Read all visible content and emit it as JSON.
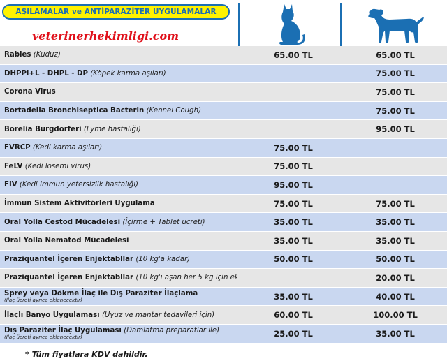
{
  "header": {
    "title": "AŞILAMALAR ve ANTİPARAZİTER UYGULAMALAR",
    "site_name": "veterinerhekimligi.com",
    "columns": [
      {
        "animal": "cat",
        "icon": "cat-icon"
      },
      {
        "animal": "dog",
        "icon": "dog-icon"
      }
    ]
  },
  "rows": [
    {
      "name": "Rabies",
      "note": "(Kuduz)",
      "sub": "",
      "cat": "65.00 TL",
      "dog": "65.00 TL"
    },
    {
      "name": "DHPPi+L - DHPL - DP",
      "note": "(Köpek karma aşıları)",
      "sub": "",
      "cat": "",
      "dog": "75.00 TL"
    },
    {
      "name": "Corona Virus",
      "note": "",
      "sub": "",
      "cat": "",
      "dog": "75.00 TL"
    },
    {
      "name": "Bortadella Bronchiseptica Bacterin",
      "note": "(Kennel Cough)",
      "sub": "",
      "cat": "",
      "dog": "75.00 TL"
    },
    {
      "name": "Borelia Burgdorferi",
      "note": "(Lyme hastalığı)",
      "sub": "",
      "cat": "",
      "dog": "95.00 TL"
    },
    {
      "name": "FVRCP",
      "note": "(Kedi karma aşıları)",
      "sub": "",
      "cat": "75.00 TL",
      "dog": ""
    },
    {
      "name": "FeLV",
      "note": "(Kedi lösemi virüs)",
      "sub": "",
      "cat": "75.00 TL",
      "dog": ""
    },
    {
      "name": "FIV",
      "note": "(Kedi immun yetersizlik hastalığı)",
      "sub": "",
      "cat": "95.00 TL",
      "dog": ""
    },
    {
      "name": "İmmun Sistem Aktivitörleri Uygulama",
      "note": "",
      "sub": "",
      "cat": "75.00 TL",
      "dog": "75.00 TL"
    },
    {
      "name": "Oral Yolla Cestod Mücadelesi",
      "note": "(İçirme + Tablet ücreti)",
      "sub": "",
      "cat": "35.00 TL",
      "dog": "35.00 TL"
    },
    {
      "name": "Oral Yolla Nematod Mücadelesi",
      "note": "",
      "sub": "",
      "cat": "35.00 TL",
      "dog": "35.00 TL"
    },
    {
      "name": "Praziquantel İçeren Enjektabllar",
      "note": "(10 kg'a kadar)",
      "sub": "",
      "cat": "50.00 TL",
      "dog": "50.00 TL"
    },
    {
      "name": "Praziquantel İçeren Enjektabllar",
      "note": "(10 kg'ı aşan her 5 kg için ek)",
      "sub": "",
      "cat": "",
      "dog": "20.00 TL"
    },
    {
      "name": "Sprey veya Dökme İlaç ile Dış Paraziter İlaçlama",
      "note": "",
      "sub": "(İlaç ücreti ayrıca eklenecektir)",
      "cat": "35.00 TL",
      "dog": "40.00 TL"
    },
    {
      "name": "İlaçlı Banyo Uygulaması",
      "note": "(Uyuz ve mantar tedavileri için)",
      "sub": "",
      "cat": "60.00 TL",
      "dog": "100.00 TL"
    },
    {
      "name": "Dış Paraziter İlaç Uygulaması",
      "note": "(Damlatma preparatlar ile)",
      "sub": "(İlaç ücreti ayrıca eklenecektir)",
      "cat": "25.00 TL",
      "dog": "35.00 TL"
    }
  ],
  "footnote": "* Tüm fiyatlara KDV dahildir.",
  "colors": {
    "accent_blue": "#1b6fb3",
    "badge_yellow": "#fff200",
    "site_red": "#e0101a",
    "row_gray": "#e6e6e6",
    "row_blue": "#c9d7f0"
  }
}
